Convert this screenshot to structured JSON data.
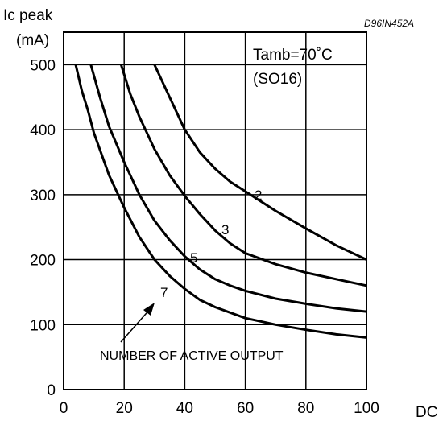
{
  "chart_data": {
    "type": "line",
    "ylabel_line1": "Ic peak",
    "ylabel_line2": "(mA)",
    "xlabel": "DC",
    "code": "D96IN452A",
    "legend_lines": [
      "Tamb=70˚C",
      "(SO16)"
    ],
    "annotation": "NUMBER OF ACTIVE OUTPUT",
    "xlim": [
      0,
      100
    ],
    "ylim": [
      0,
      550
    ],
    "xticks": [
      0,
      20,
      40,
      60,
      80,
      100
    ],
    "yticks": [
      0,
      100,
      200,
      300,
      400,
      500
    ],
    "grid": true,
    "series": [
      {
        "name": "2",
        "x": [
          30,
          35,
          40,
          45,
          50,
          55,
          60,
          70,
          80,
          90,
          100
        ],
        "y": [
          500,
          450,
          400,
          365,
          340,
          320,
          305,
          275,
          248,
          222,
          200
        ]
      },
      {
        "name": "3",
        "x": [
          19,
          22,
          25,
          30,
          35,
          40,
          45,
          50,
          55,
          60,
          70,
          80,
          90,
          100
        ],
        "y": [
          500,
          455,
          420,
          370,
          330,
          298,
          270,
          245,
          225,
          210,
          193,
          180,
          170,
          160
        ]
      },
      {
        "name": "5",
        "x": [
          9,
          12,
          15,
          20,
          25,
          30,
          35,
          40,
          45,
          50,
          55,
          60,
          70,
          80,
          90,
          100
        ],
        "y": [
          500,
          450,
          405,
          350,
          300,
          260,
          230,
          205,
          185,
          170,
          160,
          152,
          140,
          132,
          125,
          120
        ]
      },
      {
        "name": "7",
        "x": [
          4,
          6,
          8,
          10,
          15,
          20,
          25,
          30,
          35,
          40,
          45,
          50,
          60,
          70,
          80,
          90,
          100
        ],
        "y": [
          500,
          460,
          430,
          395,
          330,
          280,
          235,
          200,
          175,
          155,
          138,
          127,
          110,
          100,
          92,
          85,
          80
        ]
      }
    ]
  }
}
